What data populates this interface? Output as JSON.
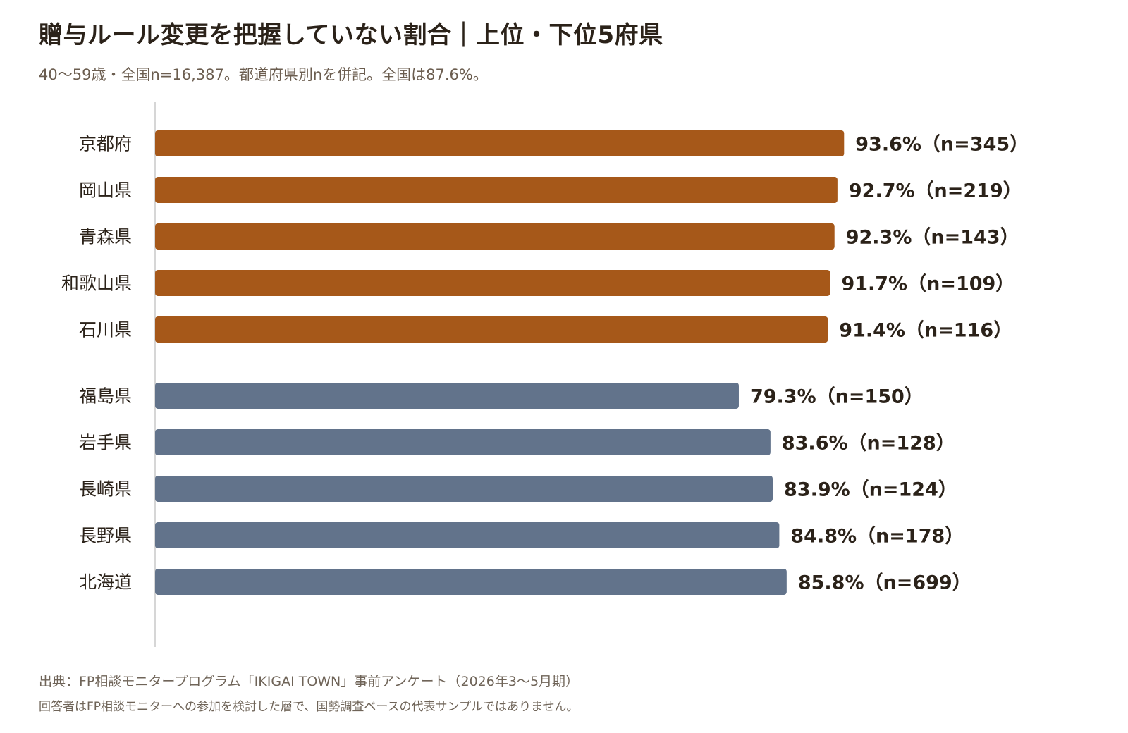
{
  "title": "贈与ルール変更を把握していない割合｜上位・下位5府県",
  "subtitle": "40〜59歳・全国n=16,387。都道府県別nを併記。全国は87.6%。",
  "footer": {
    "source": "出典：FP相談モニタープログラム「IKIGAI TOWN」事前アンケート（2026年3〜5月期）",
    "note": "回答者はFP相談モニターへの参加を検討した層で、国勢調査ベースの代表サンプルではありません。"
  },
  "colors": {
    "top_group": "#a65819",
    "bottom_group": "#62738b",
    "axis": "#d6d6d6",
    "label_text": "#2b2219"
  },
  "chart_data": {
    "type": "bar",
    "orientation": "horizontal",
    "unit": "%",
    "groups": [
      {
        "color": "#a65819",
        "bars": [
          {
            "category": "京都府",
            "value": 93.6,
            "label": "93.6%（n=345）"
          },
          {
            "category": "岡山県",
            "value": 92.7,
            "label": "92.7%（n=219）"
          },
          {
            "category": "青森県",
            "value": 92.3,
            "label": "92.3%（n=143）"
          },
          {
            "category": "和歌山県",
            "value": 91.7,
            "label": "91.7%（n=109）"
          },
          {
            "category": "石川県",
            "value": 91.4,
            "label": "91.4%（n=116）"
          }
        ]
      },
      {
        "color": "#62738b",
        "bars": [
          {
            "category": "福島県",
            "value": 79.3,
            "label": "79.3%（n=150）"
          },
          {
            "category": "岩手県",
            "value": 83.6,
            "label": "83.6%（n=128）"
          },
          {
            "category": "長崎県",
            "value": 83.9,
            "label": "83.9%（n=124）"
          },
          {
            "category": "長野県",
            "value": 84.8,
            "label": "84.8%（n=178）"
          },
          {
            "category": "北海道",
            "value": 85.8,
            "label": "85.8%（n=699）"
          }
        ]
      }
    ],
    "xlim": [
      75,
      97
    ],
    "grid": false,
    "legend": "none"
  }
}
